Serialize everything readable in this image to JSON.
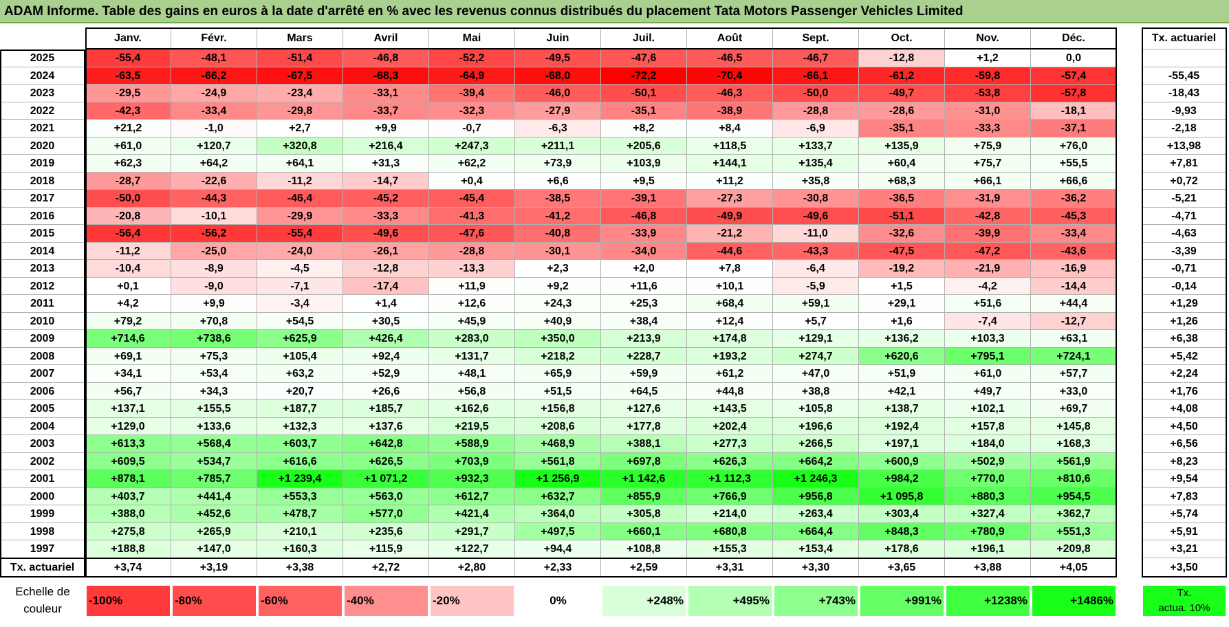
{
  "title": "ADAM Informe. Table des gains en euros à la date d'arrêté en % avec les revenus connus distribués du placement Tata Motors Passenger Vehicles Limited",
  "colors": {
    "title_bg": "#a9d08e",
    "neg_max": "#ff0000",
    "pos_max": "#00ff00",
    "neutral": "#ffffff"
  },
  "chart_data": {
    "type": "heatmap",
    "months": [
      "Janv.",
      "Févr.",
      "Mars",
      "Avril",
      "Mai",
      "Juin",
      "Juil.",
      "Août",
      "Sept.",
      "Oct.",
      "Nov.",
      "Déc."
    ],
    "rate_header": "Tx. actuariel",
    "rows": [
      {
        "year": "2025",
        "values": [
          "-55,4",
          "-48,1",
          "-51,4",
          "-46,8",
          "-52,2",
          "-49,5",
          "-47,6",
          "-46,5",
          "-46,7",
          "-12,8",
          "+1,2",
          "0,0"
        ],
        "rate": ""
      },
      {
        "year": "2024",
        "values": [
          "-63,5",
          "-66,2",
          "-67,5",
          "-68,3",
          "-64,9",
          "-68,0",
          "-72,2",
          "-70,4",
          "-66,1",
          "-61,2",
          "-59,8",
          "-57,4"
        ],
        "rate": "-55,45"
      },
      {
        "year": "2023",
        "values": [
          "-29,5",
          "-24,9",
          "-23,4",
          "-33,1",
          "-39,4",
          "-46,0",
          "-50,1",
          "-46,3",
          "-50,0",
          "-49,7",
          "-53,8",
          "-57,8"
        ],
        "rate": "-18,43"
      },
      {
        "year": "2022",
        "values": [
          "-42,3",
          "-33,4",
          "-29,8",
          "-33,7",
          "-32,3",
          "-27,9",
          "-35,1",
          "-38,9",
          "-28,8",
          "-28,6",
          "-31,0",
          "-18,1"
        ],
        "rate": "-9,93"
      },
      {
        "year": "2021",
        "values": [
          "+21,2",
          "-1,0",
          "+2,7",
          "+9,9",
          "-0,7",
          "-6,3",
          "+8,2",
          "+8,4",
          "-6,9",
          "-35,1",
          "-33,3",
          "-37,1"
        ],
        "rate": "-2,18"
      },
      {
        "year": "2020",
        "values": [
          "+61,0",
          "+120,7",
          "+320,8",
          "+216,4",
          "+247,3",
          "+211,1",
          "+205,6",
          "+118,5",
          "+133,7",
          "+135,9",
          "+75,9",
          "+76,0"
        ],
        "rate": "+13,98"
      },
      {
        "year": "2019",
        "values": [
          "+62,3",
          "+64,2",
          "+64,1",
          "+31,3",
          "+62,2",
          "+73,9",
          "+103,9",
          "+144,1",
          "+135,4",
          "+60,4",
          "+75,7",
          "+55,5"
        ],
        "rate": "+7,81"
      },
      {
        "year": "2018",
        "values": [
          "-28,7",
          "-22,6",
          "-11,2",
          "-14,7",
          "+0,4",
          "+6,6",
          "+9,5",
          "+11,2",
          "+35,8",
          "+68,3",
          "+66,1",
          "+66,6"
        ],
        "rate": "+0,72"
      },
      {
        "year": "2017",
        "values": [
          "-50,0",
          "-44,3",
          "-46,4",
          "-45,2",
          "-45,4",
          "-38,5",
          "-39,1",
          "-27,3",
          "-30,8",
          "-36,5",
          "-31,9",
          "-36,2"
        ],
        "rate": "-5,21"
      },
      {
        "year": "2016",
        "values": [
          "-20,8",
          "-10,1",
          "-29,9",
          "-33,3",
          "-41,3",
          "-41,2",
          "-46,8",
          "-49,9",
          "-49,6",
          "-51,1",
          "-42,8",
          "-45,3"
        ],
        "rate": "-4,71"
      },
      {
        "year": "2015",
        "values": [
          "-56,4",
          "-56,2",
          "-55,4",
          "-49,6",
          "-47,6",
          "-40,8",
          "-33,9",
          "-21,2",
          "-11,0",
          "-32,6",
          "-39,9",
          "-33,4"
        ],
        "rate": "-4,63"
      },
      {
        "year": "2014",
        "values": [
          "-11,2",
          "-25,0",
          "-24,0",
          "-26,1",
          "-28,8",
          "-30,1",
          "-34,0",
          "-44,6",
          "-43,3",
          "-47,5",
          "-47,2",
          "-43,6"
        ],
        "rate": "-3,39"
      },
      {
        "year": "2013",
        "values": [
          "-10,4",
          "-8,9",
          "-4,5",
          "-12,8",
          "-13,3",
          "+2,3",
          "+2,0",
          "+7,8",
          "-6,4",
          "-19,2",
          "-21,9",
          "-16,9"
        ],
        "rate": "-0,71"
      },
      {
        "year": "2012",
        "values": [
          "+0,1",
          "-9,0",
          "-7,1",
          "-17,4",
          "+11,9",
          "+9,2",
          "+11,6",
          "+10,1",
          "-5,9",
          "+1,5",
          "-4,2",
          "-14,4"
        ],
        "rate": "-0,14"
      },
      {
        "year": "2011",
        "values": [
          "+4,2",
          "+9,9",
          "-3,4",
          "+1,4",
          "+12,6",
          "+24,3",
          "+25,3",
          "+68,4",
          "+59,1",
          "+29,1",
          "+51,6",
          "+44,4"
        ],
        "rate": "+1,29"
      },
      {
        "year": "2010",
        "values": [
          "+79,2",
          "+70,8",
          "+54,5",
          "+30,5",
          "+45,9",
          "+40,9",
          "+38,4",
          "+12,4",
          "+5,7",
          "+1,6",
          "-7,4",
          "-12,7"
        ],
        "rate": "+1,26"
      },
      {
        "year": "2009",
        "values": [
          "+714,6",
          "+738,6",
          "+625,9",
          "+426,4",
          "+283,0",
          "+350,0",
          "+213,9",
          "+174,8",
          "+129,1",
          "+136,2",
          "+103,3",
          "+63,1"
        ],
        "rate": "+6,38"
      },
      {
        "year": "2008",
        "values": [
          "+69,1",
          "+75,3",
          "+105,4",
          "+92,4",
          "+131,7",
          "+218,2",
          "+228,7",
          "+193,2",
          "+274,7",
          "+620,6",
          "+795,1",
          "+724,1"
        ],
        "rate": "+5,42"
      },
      {
        "year": "2007",
        "values": [
          "+34,1",
          "+53,4",
          "+63,2",
          "+52,9",
          "+48,1",
          "+65,9",
          "+59,9",
          "+61,2",
          "+47,0",
          "+51,9",
          "+61,0",
          "+57,7"
        ],
        "rate": "+2,24"
      },
      {
        "year": "2006",
        "values": [
          "+56,7",
          "+34,3",
          "+20,7",
          "+26,6",
          "+56,8",
          "+51,5",
          "+64,5",
          "+44,8",
          "+38,8",
          "+42,1",
          "+49,7",
          "+33,0"
        ],
        "rate": "+1,76"
      },
      {
        "year": "2005",
        "values": [
          "+137,1",
          "+155,5",
          "+187,7",
          "+185,7",
          "+162,6",
          "+156,8",
          "+127,6",
          "+143,5",
          "+105,8",
          "+138,7",
          "+102,1",
          "+69,7"
        ],
        "rate": "+4,08"
      },
      {
        "year": "2004",
        "values": [
          "+129,0",
          "+133,6",
          "+132,3",
          "+137,6",
          "+219,5",
          "+208,6",
          "+177,8",
          "+202,4",
          "+196,6",
          "+192,4",
          "+157,8",
          "+145,8"
        ],
        "rate": "+4,50"
      },
      {
        "year": "2003",
        "values": [
          "+613,3",
          "+568,4",
          "+603,7",
          "+642,8",
          "+588,9",
          "+468,9",
          "+388,1",
          "+277,3",
          "+266,5",
          "+197,1",
          "+184,0",
          "+168,3"
        ],
        "rate": "+6,56"
      },
      {
        "year": "2002",
        "values": [
          "+609,5",
          "+534,7",
          "+616,6",
          "+626,5",
          "+703,9",
          "+561,8",
          "+697,8",
          "+626,3",
          "+664,2",
          "+600,9",
          "+502,9",
          "+561,9"
        ],
        "rate": "+8,23"
      },
      {
        "year": "2001",
        "values": [
          "+878,1",
          "+785,7",
          "+1 239,4",
          "+1 071,2",
          "+932,3",
          "+1 256,9",
          "+1 142,6",
          "+1 112,3",
          "+1 246,3",
          "+984,2",
          "+770,0",
          "+810,6"
        ],
        "rate": "+9,54"
      },
      {
        "year": "2000",
        "values": [
          "+403,7",
          "+441,4",
          "+553,3",
          "+563,0",
          "+612,7",
          "+632,7",
          "+855,9",
          "+766,9",
          "+956,8",
          "+1 095,8",
          "+880,3",
          "+954,5"
        ],
        "rate": "+7,83"
      },
      {
        "year": "1999",
        "values": [
          "+388,0",
          "+452,6",
          "+478,7",
          "+577,0",
          "+421,4",
          "+364,0",
          "+305,8",
          "+214,0",
          "+263,4",
          "+303,4",
          "+327,4",
          "+362,7"
        ],
        "rate": "+5,74"
      },
      {
        "year": "1998",
        "values": [
          "+275,8",
          "+265,9",
          "+210,1",
          "+235,6",
          "+291,7",
          "+497,5",
          "+660,1",
          "+680,8",
          "+664,4",
          "+848,3",
          "+780,9",
          "+551,3"
        ],
        "rate": "+5,91"
      },
      {
        "year": "1997",
        "values": [
          "+188,8",
          "+147,0",
          "+160,3",
          "+115,9",
          "+122,7",
          "+94,4",
          "+108,8",
          "+155,3",
          "+153,4",
          "+178,6",
          "+196,1",
          "+209,8"
        ],
        "rate": "+3,21"
      }
    ],
    "footer": {
      "label": "Tx. actuariel",
      "values": [
        "+3,74",
        "+3,19",
        "+3,38",
        "+2,72",
        "+2,80",
        "+2,33",
        "+2,59",
        "+3,31",
        "+3,30",
        "+3,65",
        "+3,88",
        "+4,05"
      ],
      "total": "+3,50"
    },
    "legend": {
      "label_line1": "Echelle de",
      "label_line2": "couleur",
      "stops": [
        {
          "text": "-100%",
          "color": "#ff3b3b",
          "align": "left"
        },
        {
          "text": "-80%",
          "color": "#ff4d4d",
          "align": "left"
        },
        {
          "text": "-60%",
          "color": "#ff6161",
          "align": "left"
        },
        {
          "text": "-40%",
          "color": "#ff8e8e",
          "align": "left"
        },
        {
          "text": "-20%",
          "color": "#ffc4c4",
          "align": "left"
        },
        {
          "text": "0%",
          "color": "#ffffff",
          "align": "center"
        },
        {
          "text": "+248%",
          "color": "#d9ffd9",
          "align": "right"
        },
        {
          "text": "+495%",
          "color": "#b3ffb3",
          "align": "right"
        },
        {
          "text": "+743%",
          "color": "#8cff8c",
          "align": "right"
        },
        {
          "text": "+991%",
          "color": "#66ff66",
          "align": "right"
        },
        {
          "text": "+1238%",
          "color": "#40ff40",
          "align": "right"
        },
        {
          "text": "+1486%",
          "color": "#1aff1a",
          "align": "right"
        }
      ],
      "rate_line1": "Tx.",
      "rate_line2": "actua. 10%",
      "rate_color": "#1aff1a"
    }
  }
}
